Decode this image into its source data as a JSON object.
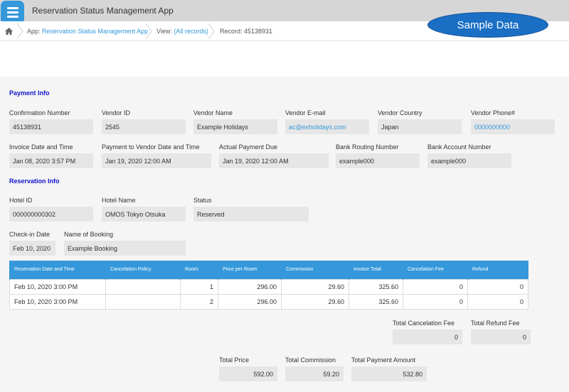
{
  "header": {
    "app_title": "Reservation Status Management App",
    "sample_badge": "Sample Data"
  },
  "breadcrumb": {
    "app_label": "App: ",
    "app_link": "Reservation Status Management App",
    "view_label": "View: ",
    "view_link": "(All records)",
    "record": "Record: 45138931"
  },
  "payment": {
    "section_title": "Payment Info",
    "confirmation_label": "Confirmation Number",
    "confirmation": "45138931",
    "vendor_id_label": "Vendor ID",
    "vendor_id": "2545",
    "vendor_name_label": "Vendor Name",
    "vendor_name": "Example Holidays",
    "vendor_email_label": "Vendor E-mail",
    "vendor_email": "ac@exholidays.com",
    "vendor_country_label": "Vendor Country",
    "vendor_country": "Japan",
    "vendor_phone_label": "Vendor Phone#",
    "vendor_phone": "0000000000",
    "invoice_dt_label": "Invoice Date and Time",
    "invoice_dt": "Jan 08, 2020 3:57 PM",
    "payment_vendor_label": "Payment to Vendor Date and Time",
    "payment_vendor": "Jan 19, 2020 12:00 AM",
    "actual_due_label": "Actual Payment Due",
    "actual_due": "Jan 19, 2020 12:00 AM",
    "routing_label": "Bank Routing Number",
    "routing": "example000",
    "account_label": "Bank Account Number",
    "account": "example000"
  },
  "reservation": {
    "section_title": "Reservation Info",
    "hotel_id_label": "Hotel ID",
    "hotel_id": "000000000302",
    "hotel_name_label": "Hotel Name",
    "hotel_name": "OMOS Tokyo Otsuka",
    "status_label": "Status",
    "status": "Reserved",
    "checkin_label": "Check-in Date",
    "checkin": "Feb 10, 2020",
    "booking_label": "Name of Booking",
    "booking": "Example Booking"
  },
  "table": {
    "columns": [
      "Reservation Date and Time",
      "Cancelation Policy",
      "Room",
      "Price per Room",
      "Commission",
      "Invoice Total",
      "Cancelation Fee",
      "Refund"
    ],
    "rows": [
      [
        "Feb 10, 2020 3:00 PM",
        "",
        "1",
        "296.00",
        "29.60",
        "325.60",
        "0",
        "0"
      ],
      [
        "Feb 10, 2020 3:00 PM",
        "",
        "2",
        "296.00",
        "29.60",
        "325.60",
        "0",
        "0"
      ]
    ]
  },
  "totals": {
    "cancel_fee_label": "Total Cancelation Fee",
    "cancel_fee": "0",
    "refund_label": "Total Refund Fee",
    "refund": "0",
    "price_label": "Total Price",
    "price": "592.00",
    "commission_label": "Total Commission",
    "commission": "59.20",
    "payment_label": "Total Payment Amount",
    "payment": "532.80"
  },
  "colors": {
    "accent": "#3498db",
    "section": "#1111cc",
    "badge": "#1a6fc5"
  }
}
